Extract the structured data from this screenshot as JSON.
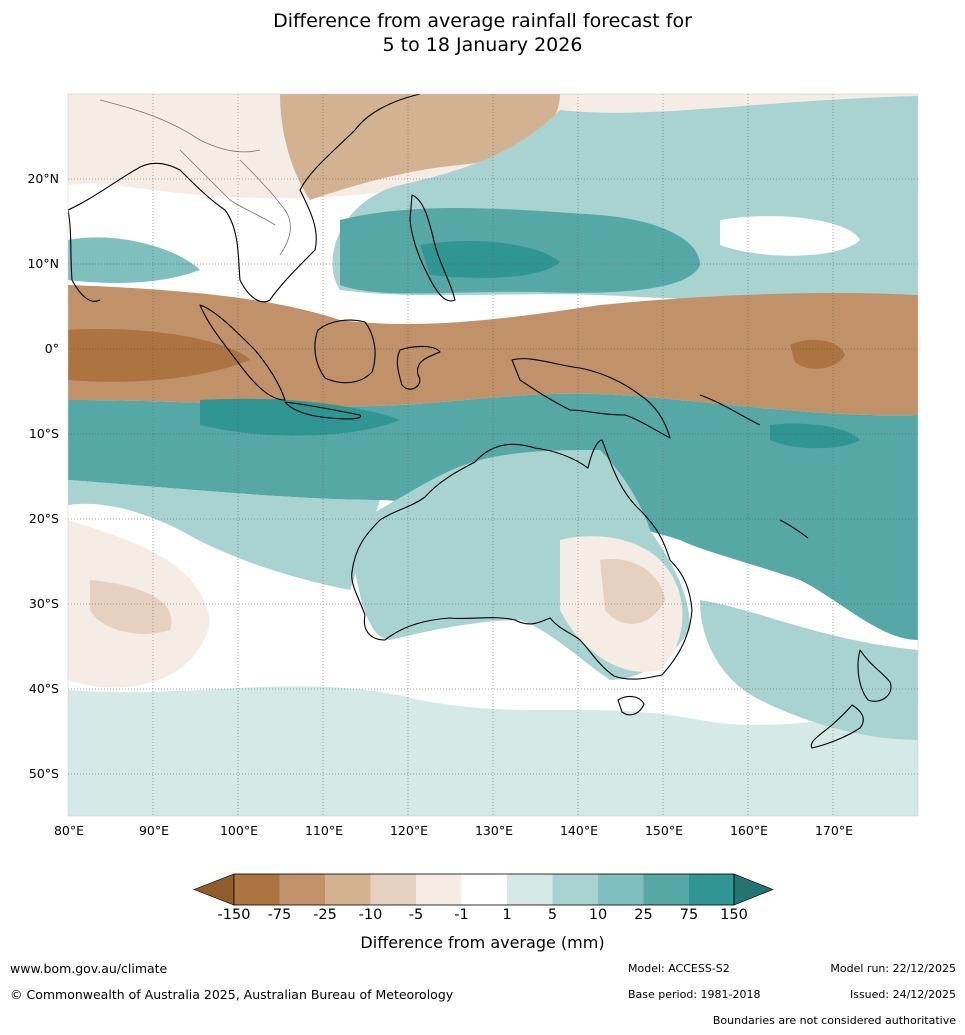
{
  "title": {
    "line1": "Difference from average rainfall forecast for",
    "line2": "5 to 18 January 2026"
  },
  "map": {
    "lat_labels": [
      "20°N",
      "10°N",
      "0°",
      "10°S",
      "20°S",
      "30°S",
      "40°S",
      "50°S"
    ],
    "lon_labels": [
      "80°E",
      "90°E",
      "100°E",
      "110°E",
      "120°E",
      "130°E",
      "140°E",
      "150°E",
      "160°E",
      "170°E"
    ]
  },
  "colorbar": {
    "ticks": [
      "-150",
      "-75",
      "-25",
      "-10",
      "-5",
      "-1",
      "1",
      "5",
      "10",
      "25",
      "75",
      "150"
    ],
    "colors": [
      "#8f5c2c",
      "#ab7440",
      "#c1916a",
      "#d3b292",
      "#e6d1c0",
      "#f5ece6",
      "#ffffff",
      "#d5e9e7",
      "#a8d3d1",
      "#7fbfbe",
      "#56a8a7",
      "#2f9693",
      "#237472"
    ],
    "label": "Difference from average (mm)"
  },
  "footer": {
    "url": "www.bom.gov.au/climate",
    "copyright": "© Commonwealth of Australia 2025, Australian Bureau of Meteorology",
    "model": "Model: ACCESS-S2",
    "base_period": "Base period: 1981-2018",
    "model_run": "Model run: 22/12/2025",
    "issued": "Issued: 24/12/2025",
    "disclaimer": "Boundaries are not considered authoritative"
  }
}
